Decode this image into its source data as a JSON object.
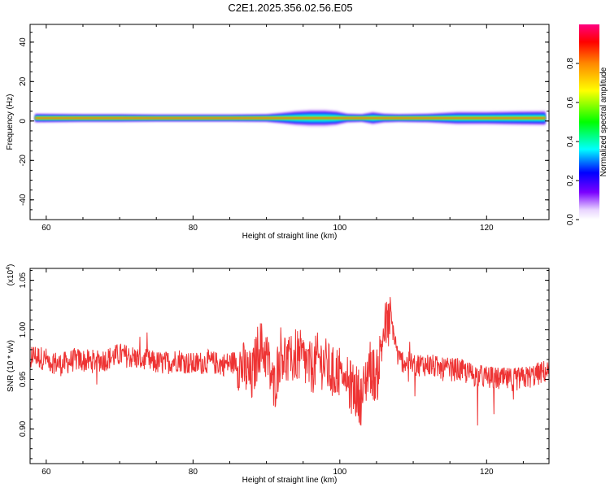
{
  "page": {
    "title": "C2E1.2025.356.02.56.E05"
  },
  "chart_data": [
    {
      "type": "heatmap",
      "title": "C2E1.2025.356.02.56.E05",
      "xlabel": "Height of straight line (km)",
      "ylabel": "Frequency (Hz)",
      "xlim": [
        57.8,
        128.5
      ],
      "ylim": [
        -50,
        49
      ],
      "x_ticks": [
        60,
        80,
        100,
        120
      ],
      "y_ticks": [
        40,
        20,
        0,
        -20,
        -40
      ],
      "grid": false,
      "description_of_signal": "narrow band of high amplitude centred near 1-2 Hz across the full height range, widening between about 92 and 100 km",
      "band": {
        "center_hz": 1.5,
        "x": [
          58.5,
          65,
          70,
          75,
          80,
          85,
          90,
          92,
          94,
          96,
          98,
          99.5,
          101,
          103,
          104.5,
          106,
          108,
          112,
          116,
          120,
          124,
          128
        ],
        "half_width_hz": [
          2.5,
          2.2,
          2.2,
          2.0,
          2.0,
          2.0,
          2.2,
          3.0,
          4.0,
          4.5,
          4.5,
          4.0,
          2.5,
          2.2,
          3.5,
          2.5,
          2.2,
          2.5,
          3.5,
          3.5,
          3.8,
          4.0
        ]
      },
      "colorbar": {
        "label": "Normalized spectral amplitude",
        "range": [
          0.0,
          1.0
        ],
        "ticks": [
          "0.0",
          "0.2",
          "0.4",
          "0.6",
          "0.8"
        ]
      }
    },
    {
      "type": "line",
      "xlabel": "Height of straight line (km)",
      "ylabel": "SNR (10 * v/v)",
      "y_multiplier_label": "(x10",
      "y_multiplier_exp": "4",
      "y_multiplier_close": ")",
      "xlim": [
        57.8,
        128.5
      ],
      "ylim": [
        0.865,
        1.062
      ],
      "x_ticks": [
        60,
        80,
        100,
        120
      ],
      "y_ticks": [
        "1.05",
        "1.00",
        "0.95",
        "0.90"
      ],
      "y_tick_values": [
        1.05,
        1.0,
        0.95,
        0.9
      ],
      "color": "#ee3333",
      "series": [
        {
          "x": [
            58,
            60,
            62,
            64,
            66,
            68,
            70,
            72,
            74,
            76,
            78,
            80,
            82,
            84,
            86,
            87,
            88,
            89,
            90,
            91,
            92,
            93,
            94,
            95,
            96,
            97,
            98,
            99,
            100,
            101,
            102,
            103,
            104,
            105,
            106,
            107,
            108,
            110,
            112,
            114,
            116,
            118,
            120,
            122,
            124,
            126,
            128
          ],
          "values": [
            0.975,
            0.97,
            0.965,
            0.97,
            0.968,
            0.97,
            0.975,
            0.972,
            0.968,
            0.966,
            0.97,
            0.965,
            0.968,
            0.965,
            0.968,
            0.96,
            0.95,
            0.985,
            0.975,
            0.94,
            0.98,
            0.965,
            0.975,
            0.97,
            0.96,
            0.97,
            0.965,
            0.955,
            0.96,
            0.945,
            0.94,
            0.93,
            0.965,
            0.95,
            1.0,
            1.01,
            0.97,
            0.965,
            0.965,
            0.96,
            0.96,
            0.955,
            0.952,
            0.95,
            0.95,
            0.953,
            0.958
          ]
        }
      ]
    }
  ]
}
